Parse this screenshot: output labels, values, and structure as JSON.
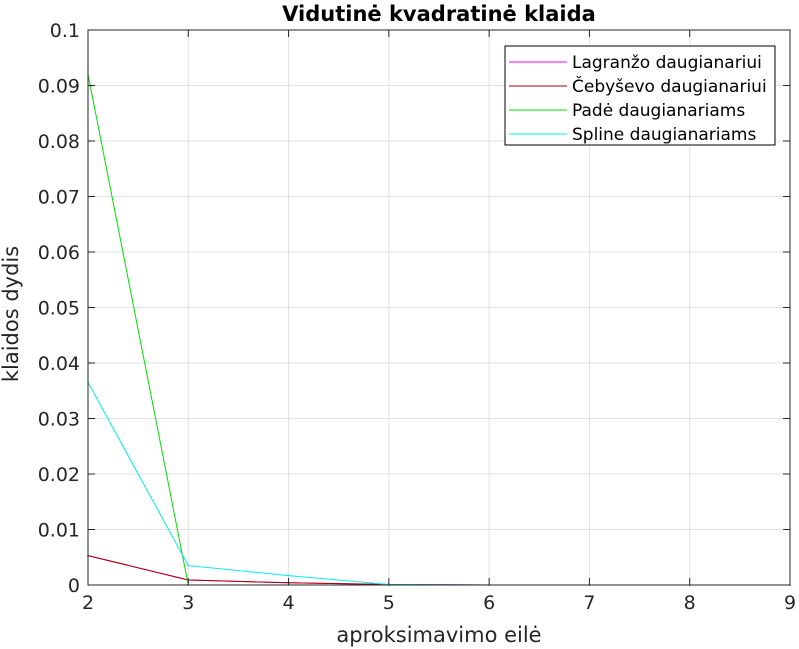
{
  "chart_data": {
    "type": "line",
    "title": "Vidutinė kvadratinė klaida",
    "xlabel": "aproksimavimo eilė",
    "ylabel": "klaidos dydis",
    "xlim": [
      2,
      9
    ],
    "ylim": [
      0,
      0.1
    ],
    "xticks": [
      "2",
      "3",
      "4",
      "5",
      "6",
      "7",
      "8",
      "9"
    ],
    "yticks": [
      "0",
      "0.01",
      "0.02",
      "0.03",
      "0.04",
      "0.05",
      "0.06",
      "0.07",
      "0.08",
      "0.09",
      "0.1"
    ],
    "grid": true,
    "legend_position": "top-right",
    "x": [
      2,
      3,
      4,
      5,
      6,
      7,
      8,
      9
    ],
    "series": [
      {
        "name": "Lagranžo daugianariui",
        "color": "#ff00ff",
        "values": [
          0.0053,
          0.0009,
          0.0004,
          0.0001,
          0.0,
          0.0,
          0.0,
          0.0
        ]
      },
      {
        "name": "Čebyševo daugianariui",
        "color": "#aa0000",
        "values": [
          0.0053,
          0.0009,
          0.0004,
          0.0001,
          0.0,
          0.0,
          0.0,
          0.0
        ]
      },
      {
        "name": "Padė daugianariams",
        "color": "#00dd00",
        "values": [
          0.092,
          0.0,
          0.0,
          0.0,
          0.0,
          0.0,
          0.0,
          0.0
        ]
      },
      {
        "name": "Spline daugianariams",
        "color": "#00eeee",
        "values": [
          0.0365,
          0.0035,
          0.0017,
          0.0001,
          0.0,
          0.0,
          0.0,
          0.0
        ]
      }
    ]
  }
}
